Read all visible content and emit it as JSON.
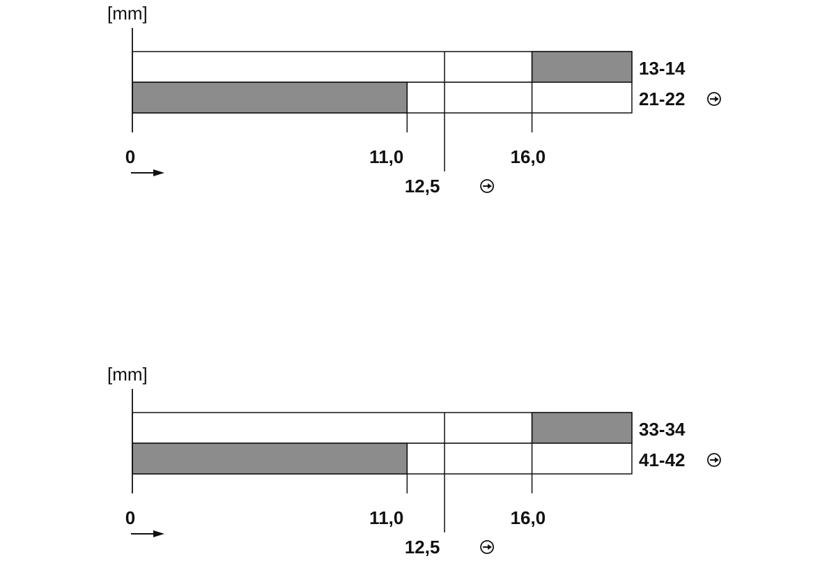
{
  "colors": {
    "line": "#111111",
    "filled": "#8c8c8c",
    "background": "#ffffff"
  },
  "diagrams": [
    {
      "unit_label": "[mm]",
      "origin_label": "0",
      "ticks": [
        {
          "value": 11.0,
          "label": "11,0",
          "icon": false
        },
        {
          "value": 12.5,
          "label": "12,5",
          "icon": true
        },
        {
          "value": 16.0,
          "label": "16,0",
          "icon": false
        }
      ],
      "contacts": [
        {
          "label": "13-14",
          "icon": false,
          "closed_from": 16.0,
          "closed_to": 20.0
        },
        {
          "label": "21-22",
          "icon": true,
          "closed_from": 0.0,
          "closed_to": 11.0
        }
      ],
      "travel_max": 20.0
    },
    {
      "unit_label": "[mm]",
      "origin_label": "0",
      "ticks": [
        {
          "value": 11.0,
          "label": "11,0",
          "icon": false
        },
        {
          "value": 12.5,
          "label": "12,5",
          "icon": true
        },
        {
          "value": 16.0,
          "label": "16,0",
          "icon": false
        }
      ],
      "contacts": [
        {
          "label": "33-34",
          "icon": false,
          "closed_from": 16.0,
          "closed_to": 20.0
        },
        {
          "label": "41-42",
          "icon": true,
          "closed_from": 0.0,
          "closed_to": 11.0
        }
      ],
      "travel_max": 20.0
    }
  ],
  "icons": {
    "direction": "arrow-right-icon",
    "positive_opening": "positive-opening-icon"
  }
}
